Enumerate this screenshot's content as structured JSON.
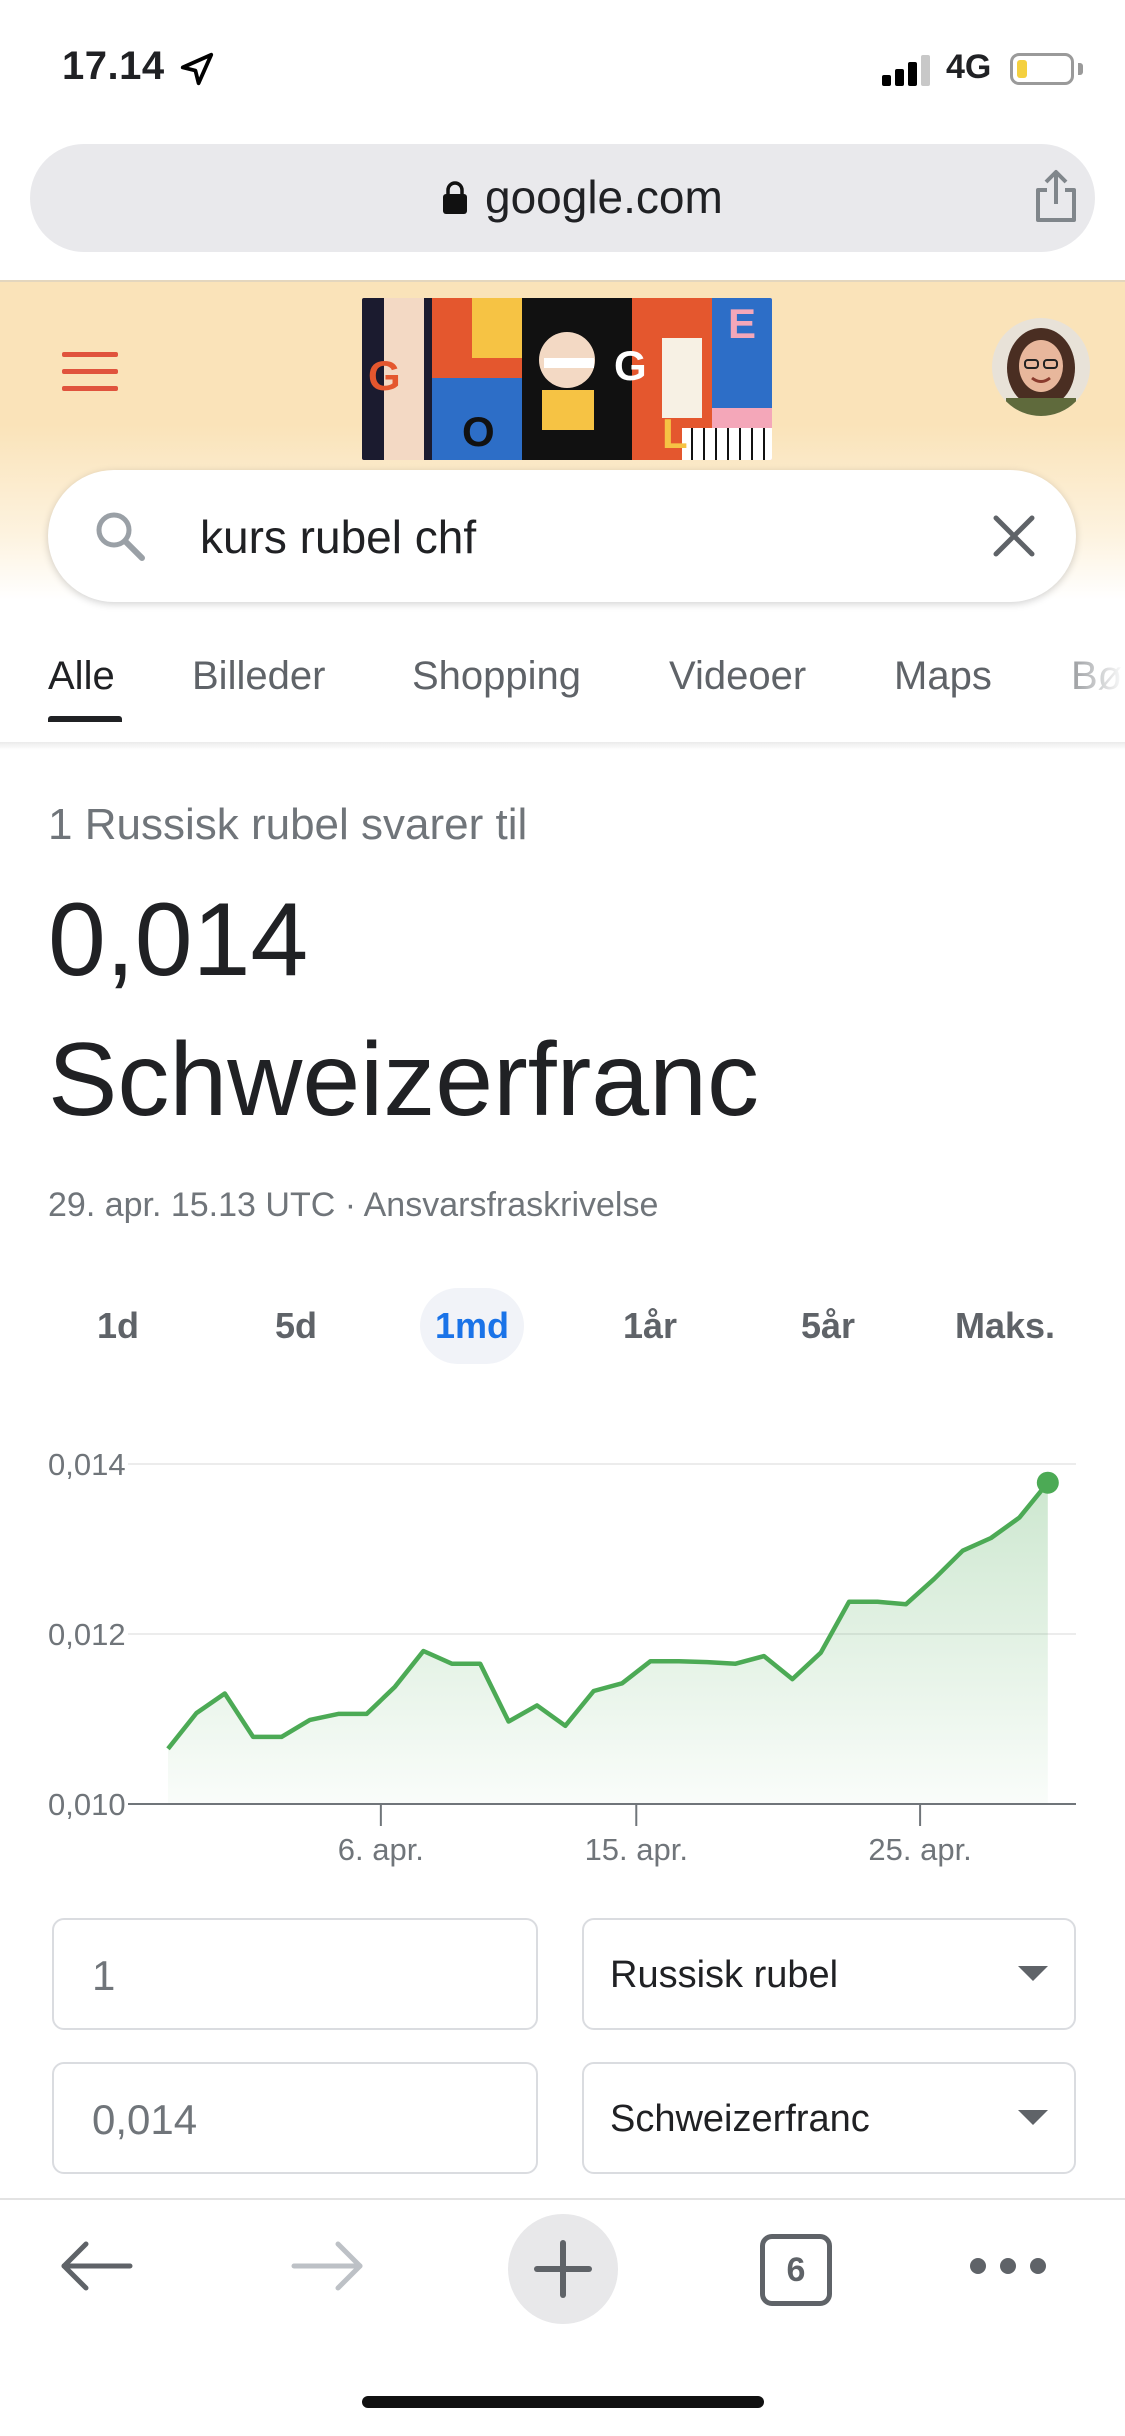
{
  "status_bar": {
    "time": "17.14",
    "network": "4G"
  },
  "address_bar": {
    "url": "google.com"
  },
  "search": {
    "query": "kurs rubel chf"
  },
  "tabs": [
    {
      "label": "Alle",
      "active": true
    },
    {
      "label": "Billeder",
      "active": false
    },
    {
      "label": "Shopping",
      "active": false
    },
    {
      "label": "Videoer",
      "active": false
    },
    {
      "label": "Maps",
      "active": false
    },
    {
      "label": "Bø",
      "active": false
    }
  ],
  "result": {
    "converts_label": "1 Russisk rubel svarer til",
    "value": "0,014",
    "currency": "Schweizerfranc",
    "timestamp": "29. apr. 15.13 UTC",
    "separator": " · ",
    "disclaimer": "Ansvarsfraskrivelse"
  },
  "ranges": [
    {
      "label": "1d",
      "active": false
    },
    {
      "label": "5d",
      "active": false
    },
    {
      "label": "1md",
      "active": true
    },
    {
      "label": "1år",
      "active": false
    },
    {
      "label": "5år",
      "active": false
    },
    {
      "label": "Maks.",
      "active": false
    }
  ],
  "chart_data": {
    "type": "area",
    "title": "",
    "xlabel": "",
    "ylabel": "",
    "ylim": [
      0.01,
      0.014
    ],
    "y_ticks": [
      "0,014",
      "0,012",
      "0,010"
    ],
    "y_tick_values": [
      0.014,
      0.012,
      0.01
    ],
    "x_ticks": [
      "6. apr.",
      "15. apr.",
      "25. apr."
    ],
    "x_tick_days": [
      6,
      15,
      25
    ],
    "x_range_days": [
      -1.5,
      30
    ],
    "grid": true,
    "color": "#4caa55",
    "points": [
      {
        "day": -1.5,
        "value": 0.01065
      },
      {
        "day": -0.5,
        "value": 0.01107
      },
      {
        "day": 0.5,
        "value": 0.0113
      },
      {
        "day": 1.5,
        "value": 0.01079
      },
      {
        "day": 2.5,
        "value": 0.01079
      },
      {
        "day": 3.5,
        "value": 0.01099
      },
      {
        "day": 4.5,
        "value": 0.01106
      },
      {
        "day": 5.5,
        "value": 0.01106
      },
      {
        "day": 6.5,
        "value": 0.01138
      },
      {
        "day": 7.5,
        "value": 0.0118
      },
      {
        "day": 8.5,
        "value": 0.01165
      },
      {
        "day": 9.5,
        "value": 0.01165
      },
      {
        "day": 10.5,
        "value": 0.01097
      },
      {
        "day": 11.5,
        "value": 0.01116
      },
      {
        "day": 12.5,
        "value": 0.01092
      },
      {
        "day": 13.5,
        "value": 0.01133
      },
      {
        "day": 14.5,
        "value": 0.01142
      },
      {
        "day": 15.5,
        "value": 0.01168
      },
      {
        "day": 16.5,
        "value": 0.01168
      },
      {
        "day": 17.5,
        "value": 0.01167
      },
      {
        "day": 18.5,
        "value": 0.01165
      },
      {
        "day": 19.5,
        "value": 0.01174
      },
      {
        "day": 20.5,
        "value": 0.01147
      },
      {
        "day": 21.5,
        "value": 0.01178
      },
      {
        "day": 22.5,
        "value": 0.01238
      },
      {
        "day": 23.5,
        "value": 0.01238
      },
      {
        "day": 24.5,
        "value": 0.01235
      },
      {
        "day": 25.5,
        "value": 0.01265
      },
      {
        "day": 26.5,
        "value": 0.01298
      },
      {
        "day": 27.5,
        "value": 0.01313
      },
      {
        "day": 28.5,
        "value": 0.01337
      },
      {
        "day": 29.5,
        "value": 0.01378
      }
    ]
  },
  "converter": {
    "from_amount": "1",
    "from_currency": "Russisk rubel",
    "to_amount": "0,014",
    "to_currency": "Schweizerfranc"
  },
  "toolbar": {
    "tab_count": "6"
  },
  "colors": {
    "header_bg": "#fae3b9",
    "accent_blue": "#1a73e8",
    "chart_green": "#4caa55",
    "menu_red": "#e0533d"
  }
}
